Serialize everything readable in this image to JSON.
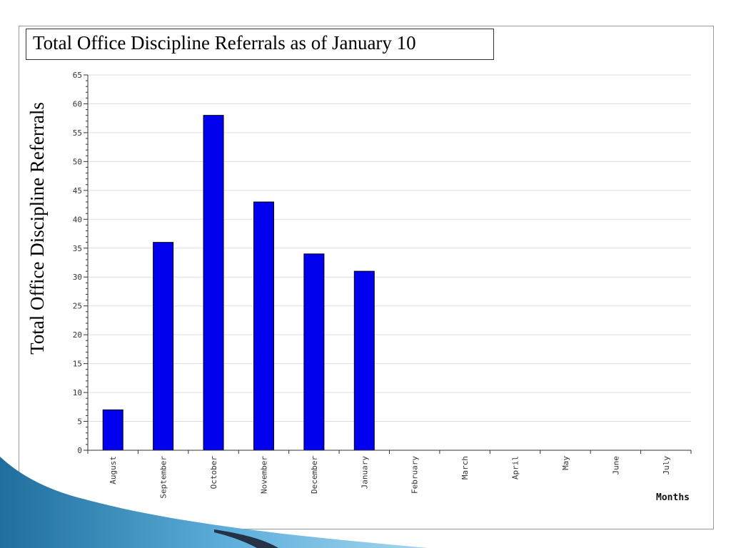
{
  "slide": {
    "title": "Total Office Discipline Referrals as of January 10",
    "ylabel": "Total Office Discipline Referrals"
  },
  "chart_data": {
    "type": "bar",
    "title": "Total Office Discipline Referrals as of January 10",
    "xlabel": "Months",
    "ylabel": "Total Office Discipline Referrals",
    "categories": [
      "August",
      "September",
      "October",
      "November",
      "December",
      "January",
      "February",
      "March",
      "April",
      "May",
      "June",
      "July"
    ],
    "values": [
      7,
      36,
      58,
      43,
      34,
      31,
      0,
      0,
      0,
      0,
      0,
      0
    ],
    "ylim": [
      0,
      65
    ],
    "yticks": [
      0,
      5,
      10,
      15,
      20,
      25,
      30,
      35,
      40,
      45,
      50,
      55,
      60,
      65
    ],
    "grid": true,
    "legend": "none",
    "colors": {
      "bar": "#0000ee",
      "bar_edge": "#000000",
      "grid": "#dddddd",
      "axis": "#333333"
    }
  }
}
